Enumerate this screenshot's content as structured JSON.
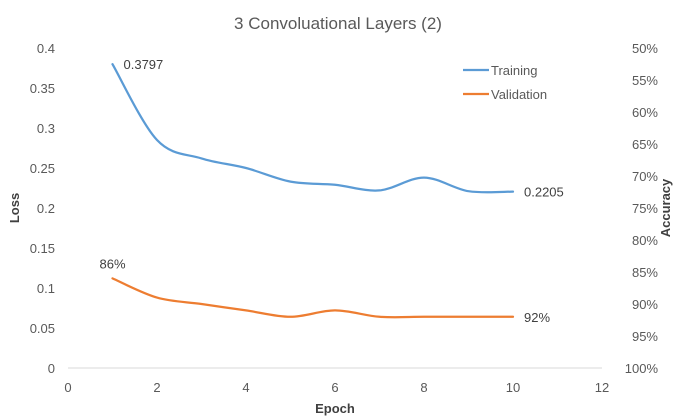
{
  "chart_data": {
    "type": "line",
    "title": "3 Convoluational Layers (2)",
    "xlabel": "Epoch",
    "ylabel": "Loss",
    "y2label": "Accuracy",
    "xlim": [
      0,
      12
    ],
    "xticks": [
      "0",
      "2",
      "4",
      "6",
      "8",
      "10",
      "12"
    ],
    "ylim": [
      0,
      0.4
    ],
    "yticks": [
      "0",
      "0.05",
      "0.1",
      "0.15",
      "0.2",
      "0.25",
      "0.3",
      "0.35",
      "0.4"
    ],
    "y2lim": [
      1.0,
      0.5
    ],
    "y2ticks": [
      "50%",
      "55%",
      "60%",
      "65%",
      "70%",
      "75%",
      "80%",
      "85%",
      "90%",
      "95%",
      "100%"
    ],
    "grid": false,
    "legend_position": "top-right",
    "x": [
      1,
      2,
      3,
      4,
      5,
      6,
      7,
      8,
      9,
      10
    ],
    "series": [
      {
        "name": "Training",
        "axis": "left",
        "color": "#5b9bd5",
        "values": [
          0.3797,
          0.285,
          0.262,
          0.25,
          0.233,
          0.229,
          0.222,
          0.238,
          0.221,
          0.2205
        ]
      },
      {
        "name": "Validation",
        "axis": "right",
        "color": "#ed7d31",
        "values": [
          0.86,
          0.89,
          0.9,
          0.91,
          0.92,
          0.91,
          0.92,
          0.92,
          0.92,
          0.92
        ]
      }
    ],
    "annotations": [
      {
        "text": "0.3797",
        "series": 0,
        "point": 0,
        "anchor": "right"
      },
      {
        "text": "0.2205",
        "series": 0,
        "point": 9,
        "anchor": "right"
      },
      {
        "text": "86%",
        "series": 1,
        "point": 0,
        "anchor": "above"
      },
      {
        "text": "92%",
        "series": 1,
        "point": 9,
        "anchor": "right"
      }
    ]
  }
}
